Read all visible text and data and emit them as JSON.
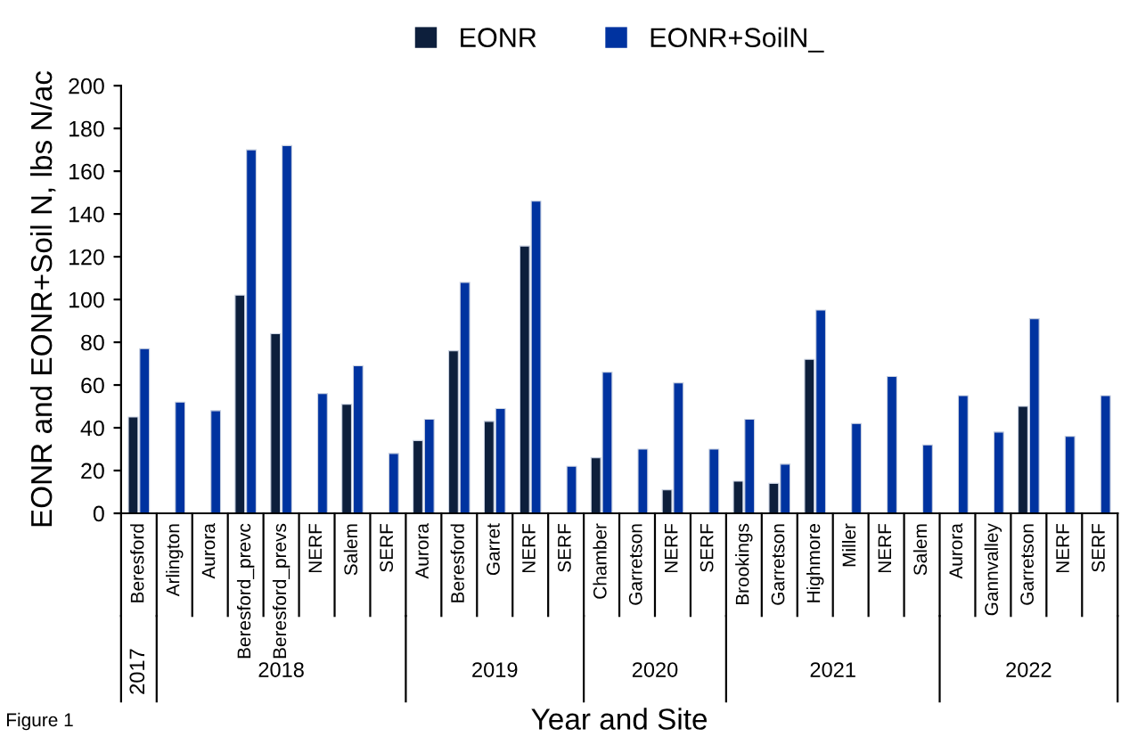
{
  "chart_data": {
    "type": "bar",
    "ylabel": "EONR and EONR+Soil N, lbs N/ac",
    "xlabel": "Year and Site",
    "categories": [
      "Beresford",
      "Arlington",
      "Aurora",
      "Beresford_prevc",
      "Beresford_prevs",
      "NERF",
      "Salem",
      "SERF",
      "Aurora",
      "Beresford",
      "Garret",
      "NERF",
      "SERF",
      "Chamber",
      "Garretson",
      "NERF",
      "SERF",
      "Brookings",
      "Garretson",
      "Highmore",
      "Miller",
      "NERF",
      "Salem",
      "Aurora",
      "Gannvalley",
      "Garretson",
      "NERF",
      "SERF"
    ],
    "series": [
      {
        "name": "EONR",
        "color": "#0d1f3c",
        "values": [
          45,
          null,
          null,
          102,
          84,
          null,
          51,
          null,
          34,
          76,
          43,
          125,
          null,
          26,
          null,
          11,
          null,
          15,
          14,
          72,
          null,
          null,
          null,
          null,
          null,
          50,
          null,
          null
        ]
      },
      {
        "name": "EONR+SoilN_",
        "color": "#0033a0",
        "values": [
          77,
          52,
          48,
          170,
          172,
          56,
          69,
          28,
          44,
          108,
          49,
          146,
          22,
          66,
          30,
          61,
          30,
          44,
          23,
          95,
          42,
          64,
          32,
          55,
          38,
          91,
          36,
          55
        ]
      }
    ],
    "ylim": [
      0,
      200
    ],
    "yticks": [
      0,
      20,
      40,
      60,
      80,
      100,
      120,
      140,
      160,
      180,
      200
    ],
    "grid": false,
    "legend": "top",
    "annotations": [
      "2017",
      "2018",
      "2019",
      "2020",
      "2021",
      "2022",
      "Figure 1"
    ]
  }
}
